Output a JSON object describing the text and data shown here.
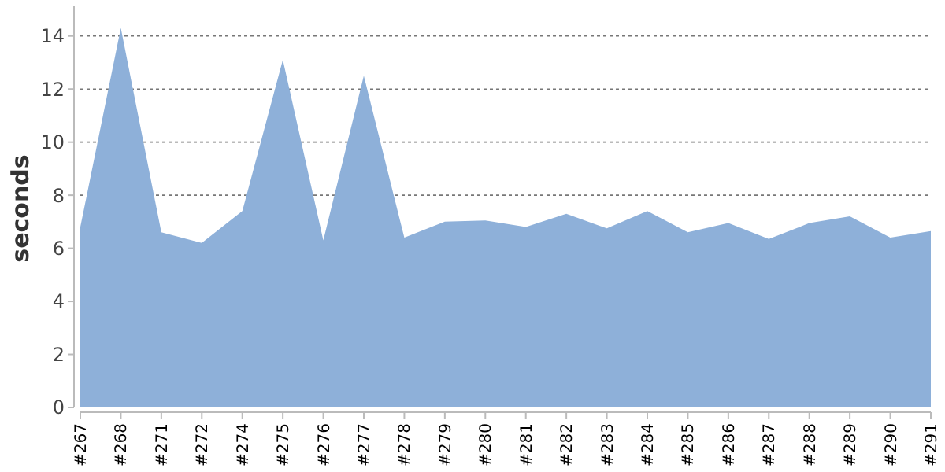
{
  "chart_data": {
    "type": "area",
    "ylabel": "seconds",
    "categories": [
      "#267",
      "#268",
      "#271",
      "#272",
      "#274",
      "#275",
      "#276",
      "#277",
      "#278",
      "#279",
      "#280",
      "#281",
      "#282",
      "#283",
      "#284",
      "#285",
      "#286",
      "#287",
      "#288",
      "#289",
      "#290",
      "#291"
    ],
    "series": [
      {
        "color": "#8eb0d9",
        "values": [
          6.8,
          14.3,
          6.6,
          6.2,
          7.4,
          13.1,
          6.3,
          12.5,
          6.4,
          7.0,
          7.05,
          6.8,
          7.3,
          6.75,
          7.4,
          6.6,
          6.95,
          6.35,
          6.95,
          7.2,
          6.4,
          6.65
        ]
      }
    ],
    "ylim": [
      0,
      15
    ],
    "yticks": [
      0,
      2,
      4,
      6,
      8,
      10,
      12,
      14
    ],
    "grid": "y"
  }
}
